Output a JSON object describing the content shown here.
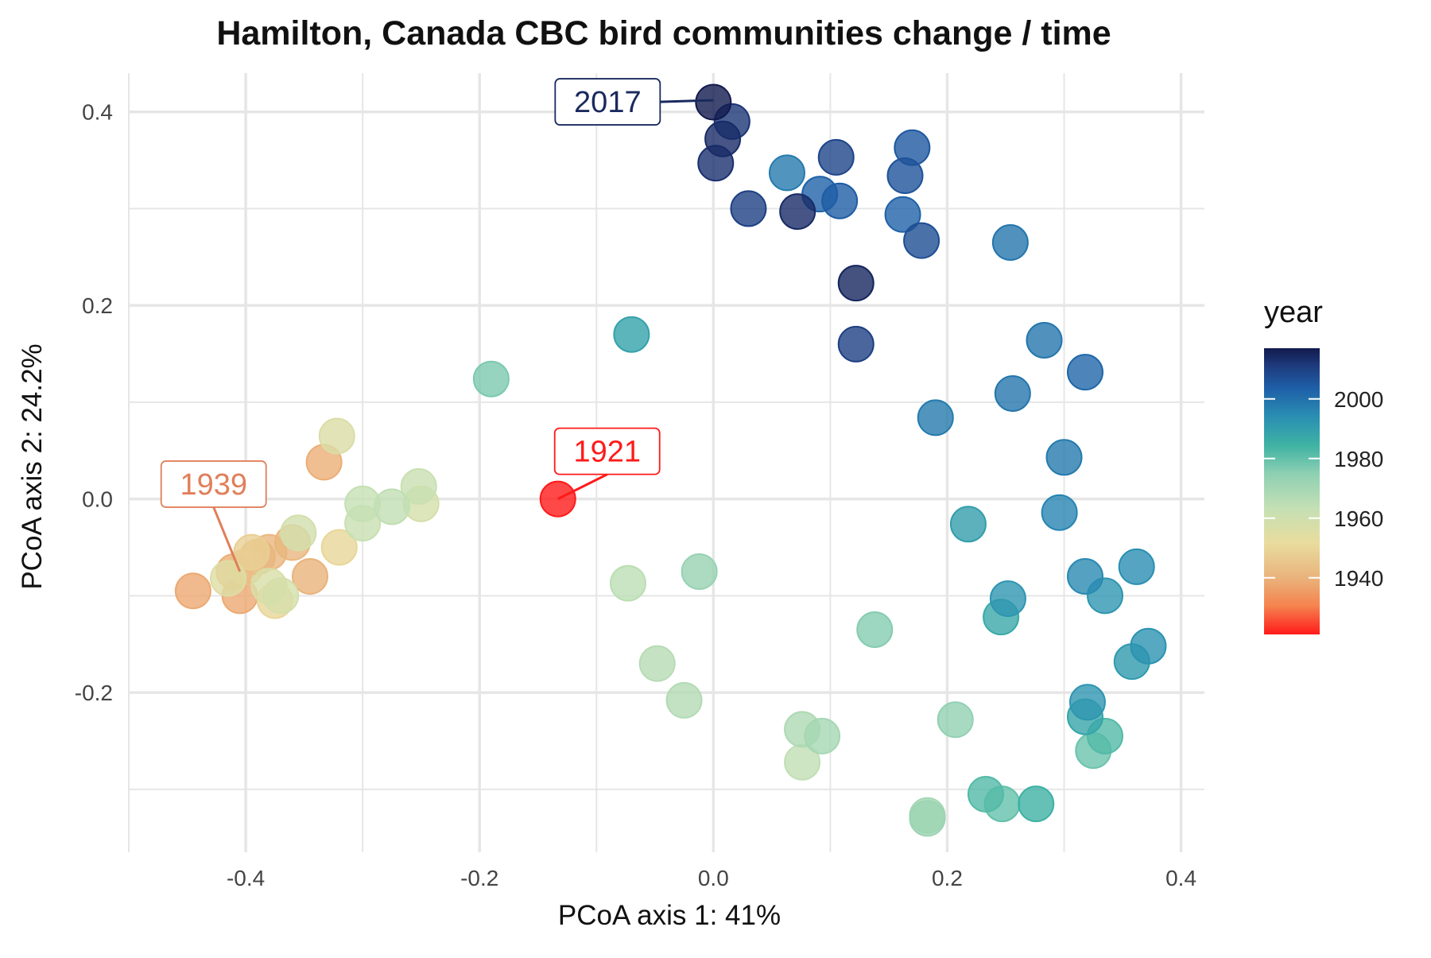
{
  "chart_data": {
    "type": "scatter",
    "title": "Hamilton, Canada CBC bird communities change / time",
    "xlabel": "PCoA axis 1: 41%",
    "ylabel": "PCoA axis 2: 24.2%",
    "xlim": [
      -0.5,
      0.42
    ],
    "ylim": [
      -0.365,
      0.44
    ],
    "x_ticks": [
      -0.4,
      -0.2,
      0.0,
      0.2,
      0.4
    ],
    "x_tick_labels": [
      "-0.4",
      "-0.2",
      "0.0",
      "0.2",
      "0.4"
    ],
    "y_ticks": [
      -0.2,
      0.0,
      0.2,
      0.4
    ],
    "y_tick_labels": [
      "-0.2",
      "0.0",
      "0.2",
      "0.4"
    ],
    "grid": true,
    "legend": {
      "title": "year",
      "position": "right",
      "type": "colorbar",
      "range": [
        1921,
        2017
      ],
      "ticks": [
        1940,
        1960,
        1980,
        2000
      ],
      "tick_labels": [
        "1940",
        "1960",
        "1980",
        "2000"
      ],
      "colormap": "red-yellow-green-blue-navy"
    },
    "annotations": [
      {
        "label": "1921",
        "x": -0.133,
        "y": 0.0,
        "color": "#ff1a1a"
      },
      {
        "label": "1939",
        "x": -0.405,
        "y": -0.075,
        "color": "#e07f5a"
      },
      {
        "label": "2017",
        "x": 0.0,
        "y": 0.412,
        "color": "#1a2a5e"
      }
    ],
    "points": [
      {
        "x": -0.133,
        "y": 0.0,
        "year": 1921
      },
      {
        "x": -0.445,
        "y": -0.095,
        "year": 1938
      },
      {
        "x": -0.405,
        "y": -0.1,
        "year": 1938
      },
      {
        "x": -0.41,
        "y": -0.075,
        "year": 1939
      },
      {
        "x": -0.39,
        "y": -0.06,
        "year": 1940
      },
      {
        "x": -0.38,
        "y": -0.055,
        "year": 1941
      },
      {
        "x": -0.36,
        "y": -0.045,
        "year": 1941
      },
      {
        "x": -0.345,
        "y": -0.08,
        "year": 1940
      },
      {
        "x": -0.333,
        "y": 0.038,
        "year": 1939
      },
      {
        "x": -0.4,
        "y": -0.07,
        "year": 1944
      },
      {
        "x": -0.395,
        "y": -0.055,
        "year": 1948
      },
      {
        "x": -0.375,
        "y": -0.105,
        "year": 1950
      },
      {
        "x": -0.415,
        "y": -0.082,
        "year": 1955
      },
      {
        "x": -0.38,
        "y": -0.09,
        "year": 1957
      },
      {
        "x": -0.37,
        "y": -0.1,
        "year": 1958
      },
      {
        "x": -0.355,
        "y": -0.035,
        "year": 1959
      },
      {
        "x": -0.32,
        "y": -0.05,
        "year": 1950
      },
      {
        "x": -0.322,
        "y": 0.065,
        "year": 1956
      },
      {
        "x": -0.3,
        "y": -0.005,
        "year": 1963
      },
      {
        "x": -0.3,
        "y": -0.025,
        "year": 1962
      },
      {
        "x": -0.275,
        "y": -0.008,
        "year": 1964
      },
      {
        "x": -0.25,
        "y": -0.005,
        "year": 1958
      },
      {
        "x": -0.252,
        "y": 0.013,
        "year": 1962
      },
      {
        "x": -0.19,
        "y": 0.124,
        "year": 1977
      },
      {
        "x": -0.07,
        "y": 0.17,
        "year": 1989
      },
      {
        "x": -0.073,
        "y": -0.087,
        "year": 1965
      },
      {
        "x": -0.012,
        "y": -0.075,
        "year": 1973
      },
      {
        "x": -0.048,
        "y": -0.17,
        "year": 1966
      },
      {
        "x": -0.025,
        "y": -0.208,
        "year": 1967
      },
      {
        "x": 0.076,
        "y": -0.238,
        "year": 1968
      },
      {
        "x": 0.076,
        "y": -0.272,
        "year": 1964
      },
      {
        "x": 0.093,
        "y": -0.245,
        "year": 1970
      },
      {
        "x": 0.138,
        "y": -0.135,
        "year": 1976
      },
      {
        "x": 0.183,
        "y": -0.327,
        "year": 1970
      },
      {
        "x": 0.183,
        "y": -0.33,
        "year": 1972
      },
      {
        "x": 0.207,
        "y": -0.228,
        "year": 1974
      },
      {
        "x": 0.233,
        "y": -0.305,
        "year": 1982
      },
      {
        "x": 0.247,
        "y": -0.315,
        "year": 1980
      },
      {
        "x": 0.276,
        "y": -0.315,
        "year": 1985
      },
      {
        "x": 0.246,
        "y": -0.122,
        "year": 1987
      },
      {
        "x": 0.252,
        "y": -0.103,
        "year": 1992
      },
      {
        "x": 0.218,
        "y": -0.026,
        "year": 1990
      },
      {
        "x": 0.296,
        "y": -0.014,
        "year": 1996
      },
      {
        "x": 0.3,
        "y": 0.043,
        "year": 1998
      },
      {
        "x": 0.19,
        "y": 0.084,
        "year": 1998
      },
      {
        "x": 0.256,
        "y": 0.109,
        "year": 1999
      },
      {
        "x": 0.283,
        "y": 0.164,
        "year": 1999
      },
      {
        "x": 0.318,
        "y": 0.131,
        "year": 2002
      },
      {
        "x": 0.254,
        "y": 0.265,
        "year": 1999
      },
      {
        "x": 0.318,
        "y": -0.08,
        "year": 1995
      },
      {
        "x": 0.335,
        "y": -0.1,
        "year": 1992
      },
      {
        "x": 0.362,
        "y": -0.07,
        "year": 1994
      },
      {
        "x": 0.372,
        "y": -0.152,
        "year": 1993
      },
      {
        "x": 0.358,
        "y": -0.168,
        "year": 1991
      },
      {
        "x": 0.32,
        "y": -0.21,
        "year": 1992
      },
      {
        "x": 0.318,
        "y": -0.225,
        "year": 1988
      },
      {
        "x": 0.335,
        "y": -0.245,
        "year": 1982
      },
      {
        "x": 0.325,
        "y": -0.26,
        "year": 1979
      },
      {
        "x": 0.063,
        "y": 0.337,
        "year": 1998
      },
      {
        "x": 0.091,
        "y": 0.315,
        "year": 2003
      },
      {
        "x": 0.108,
        "y": 0.308,
        "year": 2004
      },
      {
        "x": 0.162,
        "y": 0.294,
        "year": 2003
      },
      {
        "x": 0.164,
        "y": 0.334,
        "year": 2006
      },
      {
        "x": 0.17,
        "y": 0.363,
        "year": 2005
      },
      {
        "x": 0.105,
        "y": 0.353,
        "year": 2009
      },
      {
        "x": 0.178,
        "y": 0.267,
        "year": 2007
      },
      {
        "x": 0.03,
        "y": 0.3,
        "year": 2010
      },
      {
        "x": 0.072,
        "y": 0.297,
        "year": 2014
      },
      {
        "x": 0.122,
        "y": 0.223,
        "year": 2015
      },
      {
        "x": 0.122,
        "y": 0.16,
        "year": 2010
      },
      {
        "x": 0.002,
        "y": 0.347,
        "year": 2013
      },
      {
        "x": 0.008,
        "y": 0.372,
        "year": 2014
      },
      {
        "x": 0.016,
        "y": 0.39,
        "year": 2012
      },
      {
        "x": 0.0,
        "y": 0.41,
        "year": 2017
      }
    ]
  },
  "colors": {
    "gradient_stops": [
      "#ff1a1a",
      "#f5834f",
      "#e9b47c",
      "#e9dc9e",
      "#c4e0b4",
      "#8fd0b3",
      "#3fb3a3",
      "#2a8fb3",
      "#1e5fa8",
      "#1e3a7c",
      "#121a4e"
    ],
    "grid": "#e6e6e6"
  }
}
